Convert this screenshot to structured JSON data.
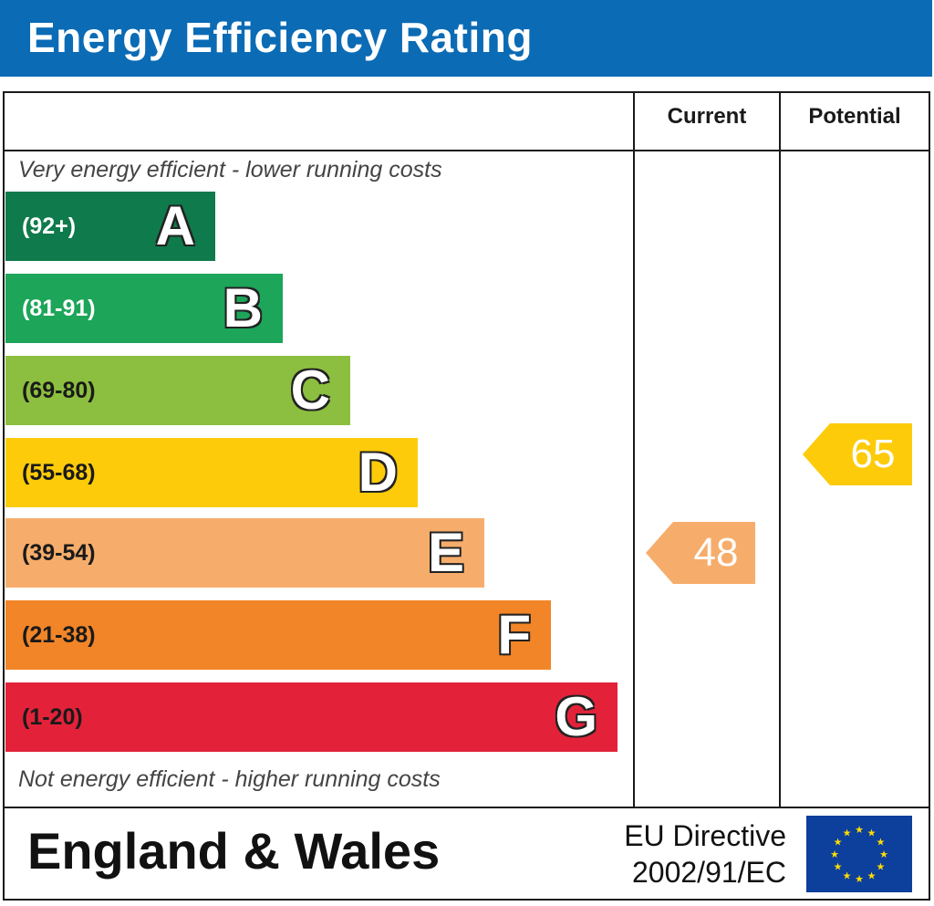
{
  "title": "Energy Efficiency Rating",
  "columns": {
    "current": "Current",
    "potential": "Potential"
  },
  "top_note": "Very energy efficient - lower running costs",
  "bottom_note": "Not energy efficient - higher running costs",
  "footer": {
    "region": "England & Wales",
    "directive_line1": "EU Directive",
    "directive_line2": "2002/91/EC"
  },
  "chart_data": {
    "type": "bar",
    "title": "Energy Efficiency Rating",
    "bands": [
      {
        "letter": "A",
        "range": "(92+)",
        "color": "#0f7a4b",
        "text_color": "#ffffff"
      },
      {
        "letter": "B",
        "range": "(81-91)",
        "color": "#1da55a",
        "text_color": "#ffffff"
      },
      {
        "letter": "C",
        "range": "(69-80)",
        "color": "#8cbf3f",
        "text_color": "#1a1a1a"
      },
      {
        "letter": "D",
        "range": "(55-68)",
        "color": "#fdcb0a",
        "text_color": "#1a1a1a"
      },
      {
        "letter": "E",
        "range": "(39-54)",
        "color": "#f6ad6b",
        "text_color": "#1a1a1a"
      },
      {
        "letter": "F",
        "range": "(21-38)",
        "color": "#f28527",
        "text_color": "#1a1a1a"
      },
      {
        "letter": "G",
        "range": "(1-20)",
        "color": "#e3223a",
        "text_color": "#1a1a1a"
      }
    ],
    "current": {
      "value": 48,
      "band": "E",
      "color": "#f6ad6b"
    },
    "potential": {
      "value": 65,
      "band": "D",
      "color": "#fdcb0a"
    }
  },
  "flag": {
    "icon": "eu-flag-icon",
    "background": "#0d3f9c",
    "star_color": "#ffdd00"
  }
}
